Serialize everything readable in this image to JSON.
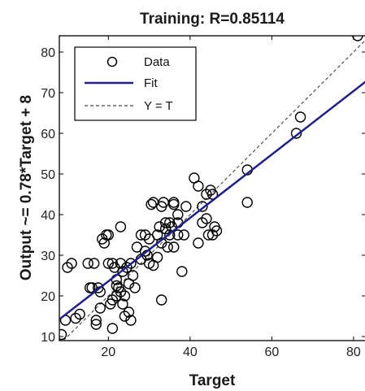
{
  "chart_data": {
    "type": "scatter",
    "title": "Training: R=0.85114",
    "xlabel": "Target",
    "ylabel": "Output ~= 0.78*Target + 8",
    "xlim": [
      8,
      83
    ],
    "ylim": [
      9,
      84
    ],
    "xticks": [
      20,
      40,
      60,
      80
    ],
    "yticks": [
      10,
      20,
      30,
      40,
      50,
      60,
      70,
      80
    ],
    "grid": false,
    "legend_position": "top-left",
    "legend": [
      {
        "label": "Data",
        "marker": "circle"
      },
      {
        "label": "Fit",
        "style": "solid",
        "color": "#1f1f8f"
      },
      {
        "label": "Y = T",
        "style": "dashed",
        "color": "#444444"
      }
    ],
    "fit": {
      "slope": 0.78,
      "intercept": 8
    },
    "series": [
      {
        "name": "Data",
        "points": [
          [
            8.5,
            10.5
          ],
          [
            9.5,
            14
          ],
          [
            10,
            27
          ],
          [
            11,
            28
          ],
          [
            12,
            14.5
          ],
          [
            13,
            15.5
          ],
          [
            15,
            28
          ],
          [
            15.5,
            22
          ],
          [
            16,
            22
          ],
          [
            16.5,
            28
          ],
          [
            17,
            14
          ],
          [
            17,
            13
          ],
          [
            17.5,
            22
          ],
          [
            18,
            21
          ],
          [
            18,
            17
          ],
          [
            18.5,
            34
          ],
          [
            19,
            33
          ],
          [
            19.5,
            35
          ],
          [
            20,
            35
          ],
          [
            20,
            28
          ],
          [
            20.5,
            18
          ],
          [
            21,
            28
          ],
          [
            21,
            19
          ],
          [
            21,
            12
          ],
          [
            21.5,
            27
          ],
          [
            22,
            22.5
          ],
          [
            22,
            20
          ],
          [
            22,
            24
          ],
          [
            22.5,
            22
          ],
          [
            23,
            28
          ],
          [
            23,
            37
          ],
          [
            23,
            21
          ],
          [
            23.5,
            26
          ],
          [
            23.5,
            18
          ],
          [
            24,
            20
          ],
          [
            24,
            15
          ],
          [
            24.5,
            27
          ],
          [
            25,
            16
          ],
          [
            25,
            23
          ],
          [
            25.5,
            14
          ],
          [
            25.5,
            28
          ],
          [
            26,
            25
          ],
          [
            26.5,
            22
          ],
          [
            27,
            32
          ],
          [
            28,
            29
          ],
          [
            28,
            35
          ],
          [
            29,
            31
          ],
          [
            29,
            35
          ],
          [
            29.5,
            30
          ],
          [
            30,
            28
          ],
          [
            30,
            34
          ],
          [
            30.5,
            42.5
          ],
          [
            31,
            43
          ],
          [
            31,
            27.5
          ],
          [
            32,
            35
          ],
          [
            32,
            29.5
          ],
          [
            32.5,
            37
          ],
          [
            33,
            42
          ],
          [
            33,
            33
          ],
          [
            33,
            19
          ],
          [
            33.5,
            43
          ],
          [
            34,
            38
          ],
          [
            34,
            36.5
          ],
          [
            34.5,
            32
          ],
          [
            35,
            38
          ],
          [
            35,
            35
          ],
          [
            35.5,
            37
          ],
          [
            36,
            43
          ],
          [
            36,
            42.5
          ],
          [
            36,
            32
          ],
          [
            37,
            38
          ],
          [
            37,
            35
          ],
          [
            37,
            40
          ],
          [
            38,
            26
          ],
          [
            38.5,
            35
          ],
          [
            39,
            42
          ],
          [
            41,
            49
          ],
          [
            42,
            33
          ],
          [
            42,
            47
          ],
          [
            43,
            42
          ],
          [
            43,
            38
          ],
          [
            44,
            39
          ],
          [
            44,
            45
          ],
          [
            44.5,
            35
          ],
          [
            45,
            46
          ],
          [
            45.5,
            45
          ],
          [
            45.5,
            35
          ],
          [
            46,
            37
          ],
          [
            46.5,
            36
          ],
          [
            54,
            51
          ],
          [
            54,
            43
          ],
          [
            66,
            60
          ],
          [
            67,
            64
          ],
          [
            81,
            84
          ]
        ]
      }
    ]
  }
}
